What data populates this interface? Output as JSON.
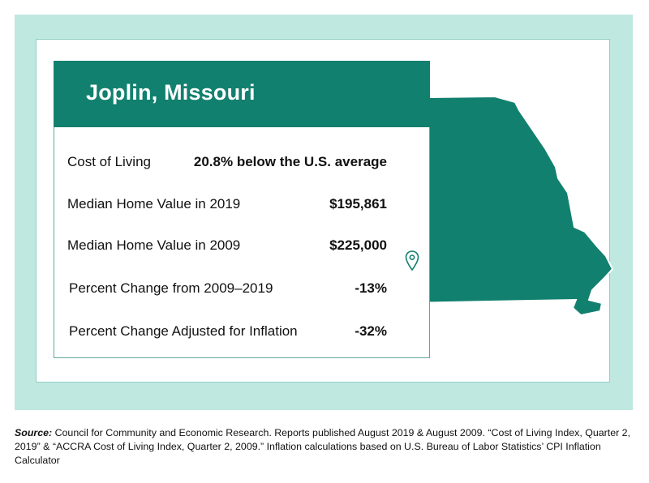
{
  "card": {
    "title": "Joplin, Missouri",
    "rows": [
      {
        "label": "Cost of Living",
        "value": "20.8% below the U.S. average"
      },
      {
        "label": "Median Home Value in 2019",
        "value": "$195,861"
      },
      {
        "label": "Median Home Value in 2009",
        "value": "$225,000"
      },
      {
        "label": "Percent Change from 2009–2019",
        "value": "-13%"
      },
      {
        "label": "Percent Change Adjusted for Inflation",
        "value": "-32%"
      }
    ]
  },
  "source": {
    "prefix": "Source:",
    "text": " Council for Community and Economic Research. Reports published August 2019 & August 2009. “Cost of Living Index, Quarter 2, 2019” & “ACCRA Cost of Living Index, Quarter 2, 2009.” Inflation calculations based on U.S. Bureau of Labor Statistics’ CPI Inflation Calculator"
  },
  "colors": {
    "brand_green": "#12806e",
    "mint_background": "#bfe8e1",
    "map_fill": "#12806e"
  },
  "icons": {
    "map": "missouri-state-map",
    "pin": "location-pin-icon"
  }
}
